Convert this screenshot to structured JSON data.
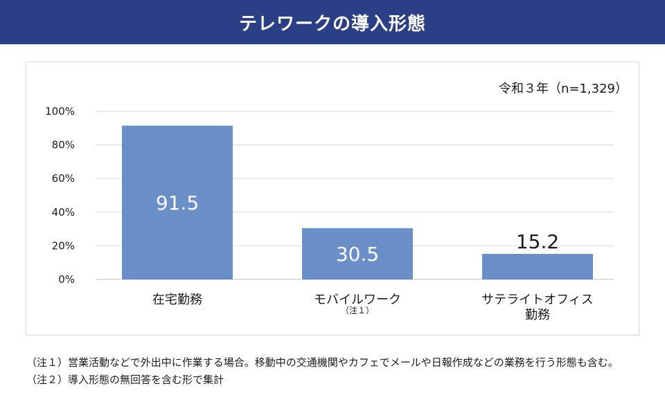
{
  "header": {
    "title": "テレワークの導入形態"
  },
  "chart_data": {
    "type": "bar",
    "title": "",
    "subtitle": "令和３年（n=1,329）",
    "categories": [
      [
        "在宅勤務"
      ],
      [
        "モバイルワーク",
        "（注１）"
      ],
      [
        "サテライトオフィス",
        "勤務"
      ]
    ],
    "values": [
      91.5,
      30.5,
      15.2
    ],
    "data_labels": [
      "91.5",
      "30.5",
      "15.2"
    ],
    "yticks": [
      "0%",
      "20%",
      "40%",
      "60%",
      "80%",
      "100%"
    ],
    "ylim": [
      0,
      100
    ],
    "grid": true,
    "legend": "none",
    "bar_color": "#6a8ec8"
  },
  "notes": [
    {
      "tag": "（注１）",
      "text": "営業活動などで外出中に作業する場合。移動中の交通機関やカフェでメールや日報作成などの業務を行う形態も含む。"
    },
    {
      "tag": "（注２）",
      "text": "導入形態の無回答を含む形で集計"
    }
  ]
}
